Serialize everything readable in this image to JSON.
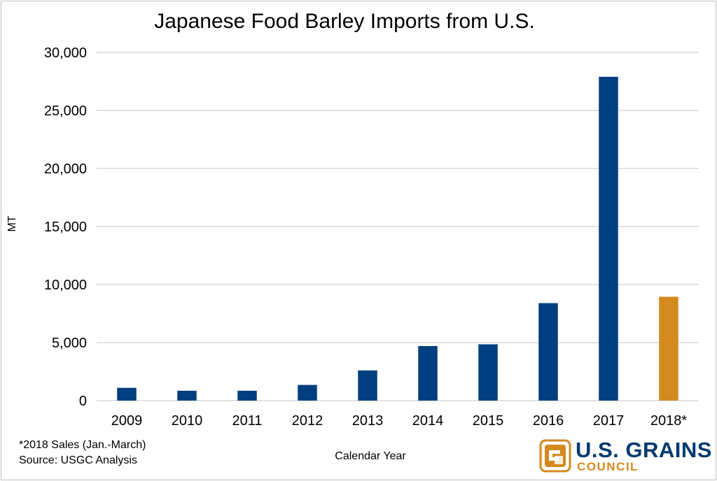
{
  "chart_data": {
    "type": "bar",
    "title": "Japanese Food Barley Imports from U.S.",
    "xlabel": "Calendar Year",
    "ylabel": "MT",
    "categories": [
      "2009",
      "2010",
      "2011",
      "2012",
      "2013",
      "2014",
      "2015",
      "2016",
      "2017",
      "2018*"
    ],
    "values": [
      1100,
      850,
      850,
      1350,
      2600,
      4700,
      4850,
      8400,
      27900,
      8950
    ],
    "ylim": [
      0,
      30000
    ],
    "yticks": [
      0,
      5000,
      10000,
      15000,
      20000,
      25000,
      30000
    ],
    "ytick_labels": [
      "0",
      "5,000",
      "10,000",
      "15,000",
      "20,000",
      "25,000",
      "30,000"
    ],
    "grid": true,
    "colors": {
      "bar": "#003f7f",
      "highlight": "#d48a1f",
      "grid": "#d9d9d9"
    },
    "highlight_categories": [
      "2018*"
    ]
  },
  "footnote": {
    "line1": "*2018 Sales (Jan.-March)",
    "line2": "Source: USGC Analysis"
  },
  "logo": {
    "line1": "U.S. GRAINS",
    "line2": "COUNCIL"
  }
}
